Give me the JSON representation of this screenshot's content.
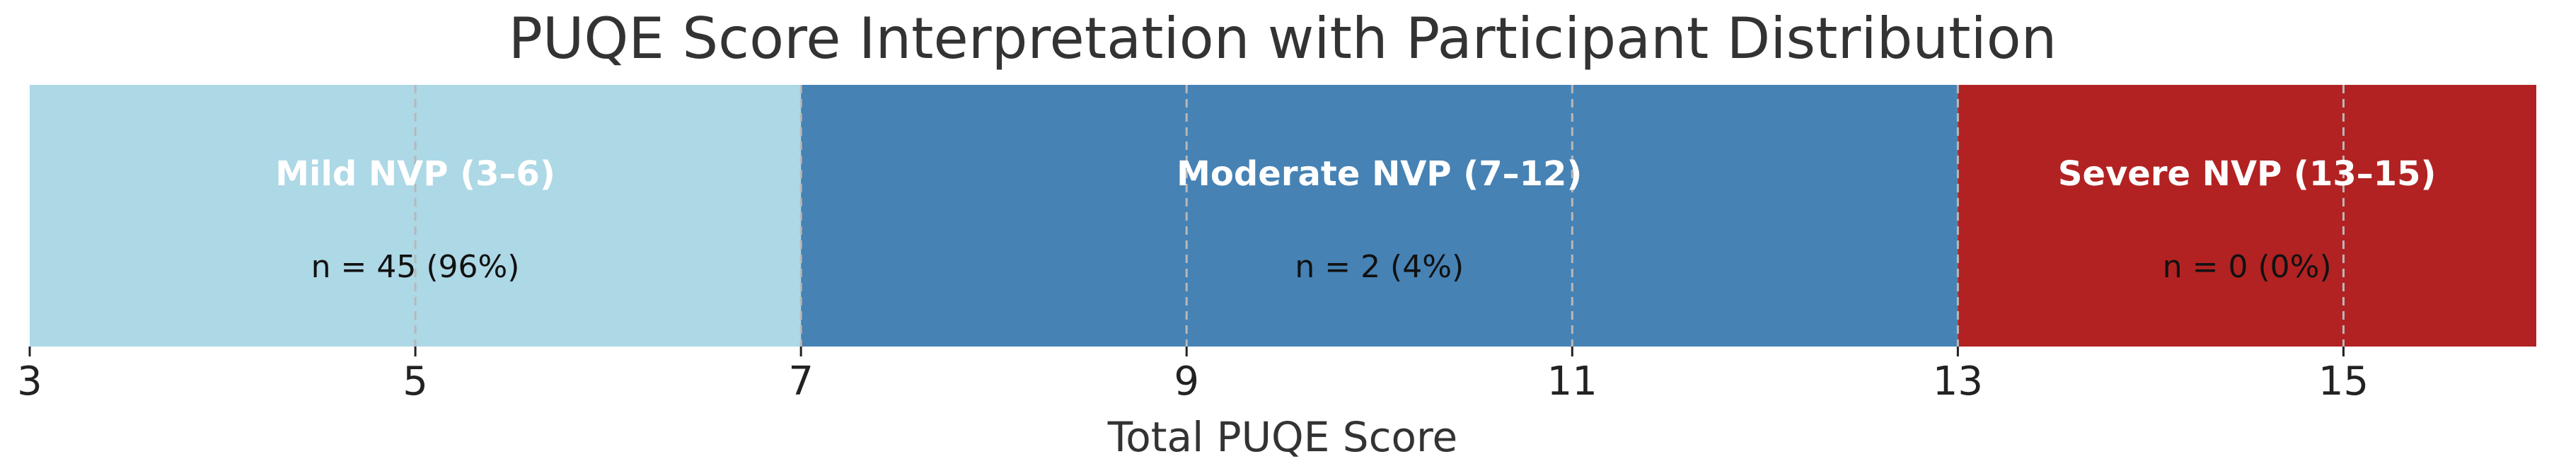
{
  "chart_data": {
    "type": "bar",
    "title": "PUQE Score Interpretation with Participant Distribution",
    "xlabel": "Total PUQE Score",
    "xlim": [
      3,
      16
    ],
    "xticks": [
      3,
      5,
      7,
      9,
      11,
      13,
      15
    ],
    "xtick_labels": [
      "3",
      "5",
      "7",
      "9",
      "11",
      "13",
      "15"
    ],
    "grid": true,
    "bands": [
      {
        "name": "Mild NVP (3–6)",
        "start": 3,
        "end": 7,
        "color": "#ADD8E6",
        "count_label": "n = 45 (96%)",
        "n": 45,
        "percent": 96
      },
      {
        "name": "Moderate NVP (7–12)",
        "start": 7,
        "end": 13,
        "color": "#4682B4",
        "count_label": "n = 2 (4%)",
        "n": 2,
        "percent": 4
      },
      {
        "name": "Severe NVP (13–15)",
        "start": 13,
        "end": 16,
        "color": "#B22222",
        "count_label": "n = 0 (0%)",
        "n": 0,
        "percent": 0
      }
    ]
  }
}
